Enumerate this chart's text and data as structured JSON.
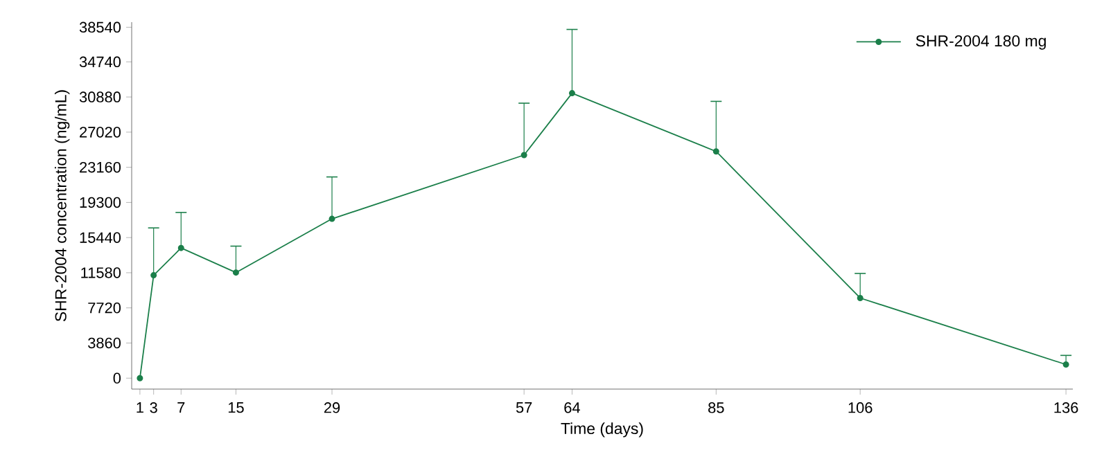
{
  "chart_data": {
    "type": "line",
    "xlabel": "Time (days)",
    "ylabel": "SHR-2004 concentration (ng/mL)",
    "x": [
      1,
      3,
      7,
      15,
      29,
      57,
      64,
      85,
      106,
      136
    ],
    "series": [
      {
        "name": "SHR-2004 180 mg",
        "color": "#1b7f4a",
        "values": [
          0,
          11300,
          14300,
          11600,
          17500,
          24500,
          31300,
          24900,
          8800,
          1500
        ],
        "errors": [
          null,
          [
            11300,
            16500
          ],
          [
            14300,
            18200
          ],
          [
            11600,
            14500
          ],
          [
            17500,
            22100
          ],
          [
            24500,
            30200
          ],
          [
            31300,
            38300
          ],
          [
            24900,
            30400
          ],
          [
            8800,
            11500
          ],
          [
            1500,
            2500
          ]
        ]
      }
    ],
    "xlim": [
      -0.2,
      137
    ],
    "xticks": [
      1,
      3,
      7,
      15,
      29,
      57,
      64,
      85,
      106,
      136
    ],
    "ylim": [
      -1200,
      39100
    ],
    "yticks": [
      0,
      3860,
      7720,
      11580,
      15440,
      19300,
      23160,
      27020,
      30880,
      34740,
      38540
    ],
    "legend": "top right",
    "marker": "circle",
    "line_style": "solid",
    "grid": false
  }
}
